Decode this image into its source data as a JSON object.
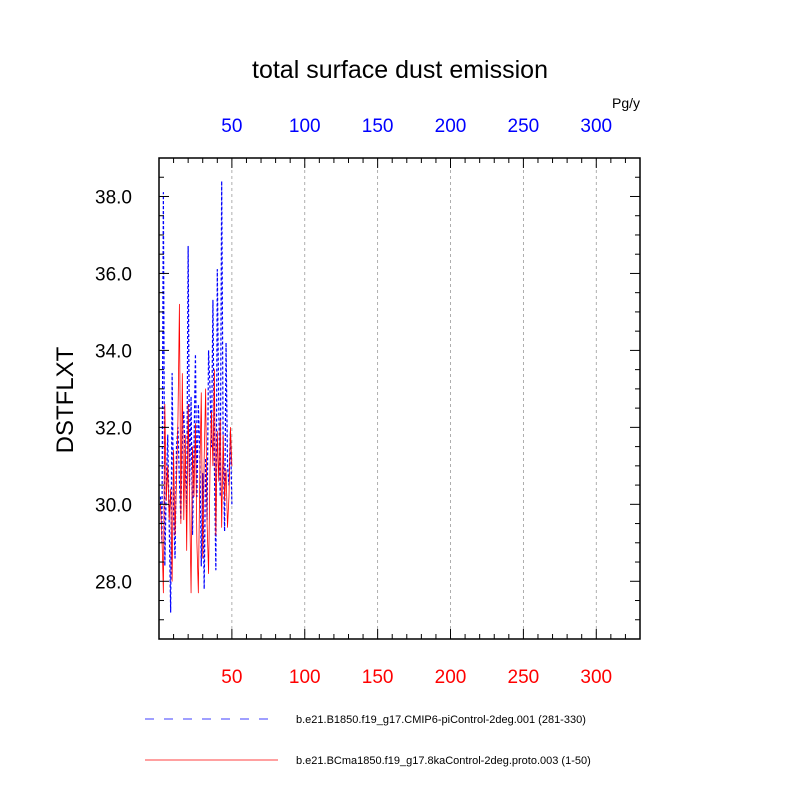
{
  "chart_data": {
    "type": "line",
    "title": "total surface dust emission",
    "ylabel": "DSTFLXT",
    "xlabel": "",
    "top_axis_unit": "Pg/y",
    "xlim": [
      0,
      330
    ],
    "ylim": [
      26.5,
      39.0
    ],
    "xticks": [
      50,
      100,
      150,
      200,
      250,
      300
    ],
    "xtick_labels": [
      "50",
      "100",
      "150",
      "200",
      "250",
      "300"
    ],
    "xtick_color_top": "#0000ff",
    "xtick_color_bottom": "#ff0000",
    "yticks": [
      28,
      30,
      32,
      34,
      36,
      38
    ],
    "ytick_labels": [
      "28.0",
      "30.0",
      "32.0",
      "34.0",
      "36.0",
      "38.0"
    ],
    "grid": "x-dashed",
    "legend_placement": "bottom",
    "series": [
      {
        "name": "b.e21.B1850.f19_g17.CMIP6-piControl-2deg.001 (281-330)",
        "color": "#0000ff",
        "dash": "dashed",
        "x": [
          1,
          2,
          3,
          4,
          5,
          6,
          7,
          8,
          9,
          10,
          11,
          12,
          13,
          14,
          15,
          16,
          17,
          18,
          19,
          20,
          21,
          22,
          23,
          24,
          25,
          26,
          27,
          28,
          29,
          30,
          31,
          32,
          33,
          34,
          35,
          36,
          37,
          38,
          39,
          40,
          41,
          42,
          43,
          44,
          45,
          46,
          47,
          48,
          49,
          50
        ],
        "y": [
          30.2,
          29.0,
          38.1,
          28.4,
          30.5,
          31.8,
          29.5,
          27.2,
          33.4,
          29.8,
          28.6,
          31.5,
          32.0,
          30.6,
          29.6,
          31.9,
          32.4,
          31.0,
          29.8,
          36.7,
          30.5,
          32.8,
          29.2,
          31.5,
          33.9,
          30.2,
          32.6,
          31.4,
          28.4,
          30.8,
          27.8,
          31.2,
          29.6,
          34.0,
          33.0,
          31.5,
          35.3,
          31.0,
          28.3,
          36.1,
          32.5,
          30.2,
          38.4,
          31.6,
          29.3,
          34.2,
          31.0,
          30.5,
          31.9,
          30.0
        ]
      },
      {
        "name": "b.e21.BCma1850.f19_g17.8kaControl-2deg.proto.003 (1-50)",
        "color": "#ff0000",
        "dash": "solid",
        "x": [
          1,
          2,
          3,
          4,
          5,
          6,
          7,
          8,
          9,
          10,
          11,
          12,
          13,
          14,
          15,
          16,
          17,
          18,
          19,
          20,
          21,
          22,
          23,
          24,
          25,
          26,
          27,
          28,
          29,
          30,
          31,
          32,
          33,
          34,
          35,
          36,
          37,
          38,
          39,
          40,
          41,
          42,
          43,
          44,
          45,
          46,
          47,
          48,
          49,
          50
        ],
        "y": [
          30.0,
          29.2,
          27.7,
          32.6,
          30.1,
          31.0,
          29.6,
          30.4,
          28.0,
          31.4,
          29.2,
          30.6,
          32.2,
          35.2,
          29.5,
          33.4,
          29.6,
          31.8,
          28.8,
          32.6,
          30.1,
          27.7,
          31.5,
          30.2,
          32.1,
          29.0,
          27.7,
          30.8,
          32.9,
          28.6,
          31.2,
          33.0,
          29.5,
          28.2,
          30.9,
          32.4,
          31.0,
          33.5,
          29.2,
          31.9,
          30.6,
          32.2,
          29.4,
          31.8,
          30.1,
          30.9,
          29.4,
          30.2,
          32.0,
          31.0
        ]
      }
    ]
  }
}
